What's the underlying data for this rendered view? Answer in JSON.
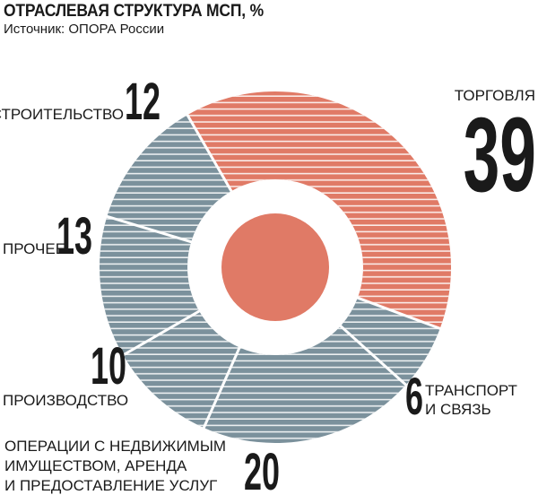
{
  "title": "ОТРАСЛЕВАЯ СТРУКТУРА МСП, %",
  "source": "Источник: ОПОРА России",
  "colors": {
    "accent": "#e07a66",
    "secondary": "#7b919c",
    "stripe": "#ffffff"
  },
  "chart_data": {
    "type": "pie",
    "variant": "donut",
    "unit": "%",
    "slices": [
      {
        "label": "ТОРГОВЛЯ",
        "value": 39,
        "color": "#e07a66"
      },
      {
        "label": "ТРАНСПОРТ И СВЯЗЬ",
        "value": 6,
        "color": "#7b919c"
      },
      {
        "label": "ОПЕРАЦИИ С НЕДВИЖИМЫМ ИМУЩЕСТВОМ, АРЕНДА И ПРЕДОСТАВЛЕНИЕ УСЛУГ",
        "value": 20,
        "color": "#7b919c"
      },
      {
        "label": "ПРОИЗВОДСТВО",
        "value": 10,
        "color": "#7b919c"
      },
      {
        "label": "ПРОЧЕЕ",
        "value": 13,
        "color": "#7b919c"
      },
      {
        "label": "СТРОИТЕЛЬСТВО",
        "value": 12,
        "color": "#7b919c"
      }
    ]
  }
}
